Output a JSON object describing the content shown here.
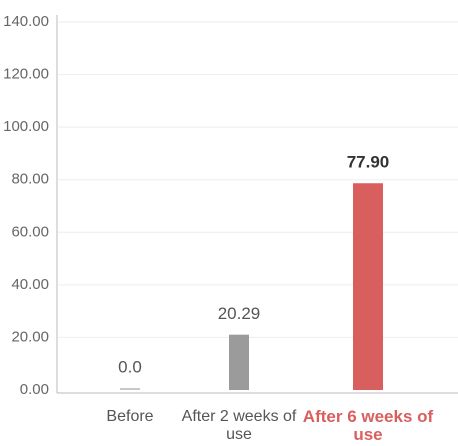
{
  "chart_data": {
    "type": "bar",
    "categories": [
      "Before",
      "After 2 weeks of use",
      "After 6 weeks of use"
    ],
    "values": [
      0,
      20.29,
      77.9
    ],
    "value_labels": [
      "0.0",
      "20.29",
      "77.90"
    ],
    "colors": [
      "#c8c8c8",
      "#9b9b9b",
      "#d95f5f"
    ],
    "label_colors": [
      "#555555",
      "#555555",
      "#d95f5f"
    ],
    "ylim": [
      0,
      140
    ],
    "yticks": [
      {
        "value": 0,
        "label": "0.00"
      },
      {
        "value": 20,
        "label": "20.00"
      },
      {
        "value": 40,
        "label": "40.00"
      },
      {
        "value": 60,
        "label": "60.00"
      },
      {
        "value": 80,
        "label": "80.00"
      },
      {
        "value": 100,
        "label": "100.00"
      },
      {
        "value": 120,
        "label": "120.00"
      },
      {
        "value": 140,
        "label": "140.00"
      }
    ],
    "grid": true
  }
}
